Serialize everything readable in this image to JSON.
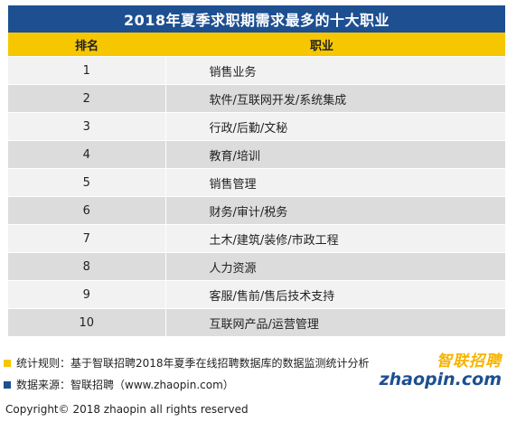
{
  "title": "2018年夏季求职期需求最多的十大职业",
  "headers": {
    "rank": "排名",
    "job": "职业"
  },
  "rows": [
    {
      "rank": "1",
      "job": "销售业务"
    },
    {
      "rank": "2",
      "job": "软件/互联网开发/系统集成"
    },
    {
      "rank": "3",
      "job": "行政/后勤/文秘"
    },
    {
      "rank": "4",
      "job": "教育/培训"
    },
    {
      "rank": "5",
      "job": "销售管理"
    },
    {
      "rank": "6",
      "job": "财务/审计/税务"
    },
    {
      "rank": "7",
      "job": "土木/建筑/装修/市政工程"
    },
    {
      "rank": "8",
      "job": "人力资源"
    },
    {
      "rank": "9",
      "job": "客服/售前/售后技术支持"
    },
    {
      "rank": "10",
      "job": "互联网产品/运营管理"
    }
  ],
  "notes": {
    "rule": "统计规则：基于智联招聘2018年夏季在线招聘数据库的数据监测统计分析",
    "source": "数据来源：智联招聘（www.zhaopin.com）"
  },
  "logo": {
    "cn": "智联招聘",
    "en": "zhaopin.com"
  },
  "copyright": "Copyright© 2018 zhaopin all rights reserved",
  "colors": {
    "title_bg": "#1d4f91",
    "header_bg": "#f6c700",
    "rule_marker": "#f6c700",
    "source_marker": "#1d4f91"
  }
}
